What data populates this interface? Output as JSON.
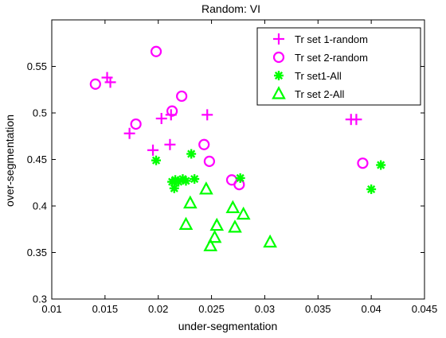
{
  "chart_data": {
    "type": "scatter",
    "title": "Random: VI",
    "xlabel": "under-segmentation",
    "ylabel": "over-segmentation",
    "xlim": [
      0.01,
      0.045
    ],
    "ylim": [
      0.3,
      0.6
    ],
    "xticks": [
      0.01,
      0.015,
      0.02,
      0.025,
      0.03,
      0.035,
      0.04,
      0.045
    ],
    "xtick_labels": [
      "0.01",
      "0.015",
      "0.02",
      "0.025",
      "0.03",
      "0.035",
      "0.04",
      "0.045"
    ],
    "yticks": [
      0.3,
      0.35,
      0.4,
      0.45,
      0.5,
      0.55
    ],
    "ytick_labels": [
      "0.3",
      "0.35",
      "0.4",
      "0.45",
      "0.5",
      "0.55"
    ],
    "grid": false,
    "legend_position": "top-right",
    "series": [
      {
        "name": "Tr set 1-random",
        "marker": "plus",
        "color": "#FF00FF",
        "points": [
          {
            "x": 0.0152,
            "y": 0.538
          },
          {
            "x": 0.0155,
            "y": 0.533
          },
          {
            "x": 0.0173,
            "y": 0.478
          },
          {
            "x": 0.0195,
            "y": 0.46
          },
          {
            "x": 0.0203,
            "y": 0.494
          },
          {
            "x": 0.0211,
            "y": 0.466
          },
          {
            "x": 0.0212,
            "y": 0.498
          },
          {
            "x": 0.0246,
            "y": 0.498
          },
          {
            "x": 0.0381,
            "y": 0.493
          },
          {
            "x": 0.0386,
            "y": 0.493
          }
        ]
      },
      {
        "name": "Tr set 2-random",
        "marker": "circle",
        "color": "#FF00FF",
        "points": [
          {
            "x": 0.0141,
            "y": 0.531
          },
          {
            "x": 0.0179,
            "y": 0.488
          },
          {
            "x": 0.0198,
            "y": 0.566
          },
          {
            "x": 0.0213,
            "y": 0.502
          },
          {
            "x": 0.0222,
            "y": 0.518
          },
          {
            "x": 0.0243,
            "y": 0.466
          },
          {
            "x": 0.0248,
            "y": 0.448
          },
          {
            "x": 0.0269,
            "y": 0.428
          },
          {
            "x": 0.0276,
            "y": 0.423
          },
          {
            "x": 0.0392,
            "y": 0.446
          }
        ]
      },
      {
        "name": "Tr set1-All",
        "marker": "asterisk",
        "color": "#00FF00",
        "points": [
          {
            "x": 0.0198,
            "y": 0.449
          },
          {
            "x": 0.0213,
            "y": 0.426
          },
          {
            "x": 0.0215,
            "y": 0.419
          },
          {
            "x": 0.0216,
            "y": 0.428
          },
          {
            "x": 0.0219,
            "y": 0.426
          },
          {
            "x": 0.0223,
            "y": 0.429
          },
          {
            "x": 0.0226,
            "y": 0.427
          },
          {
            "x": 0.0231,
            "y": 0.456
          },
          {
            "x": 0.0234,
            "y": 0.429
          },
          {
            "x": 0.0277,
            "y": 0.43
          },
          {
            "x": 0.04,
            "y": 0.418
          },
          {
            "x": 0.0409,
            "y": 0.444
          }
        ]
      },
      {
        "name": "Tr set 2-All",
        "marker": "triangle",
        "color": "#00FF00",
        "points": [
          {
            "x": 0.0226,
            "y": 0.38
          },
          {
            "x": 0.023,
            "y": 0.403
          },
          {
            "x": 0.0245,
            "y": 0.418
          },
          {
            "x": 0.0249,
            "y": 0.357
          },
          {
            "x": 0.0253,
            "y": 0.366
          },
          {
            "x": 0.0255,
            "y": 0.379
          },
          {
            "x": 0.027,
            "y": 0.398
          },
          {
            "x": 0.0272,
            "y": 0.377
          },
          {
            "x": 0.028,
            "y": 0.391
          },
          {
            "x": 0.0305,
            "y": 0.361
          }
        ]
      }
    ]
  }
}
